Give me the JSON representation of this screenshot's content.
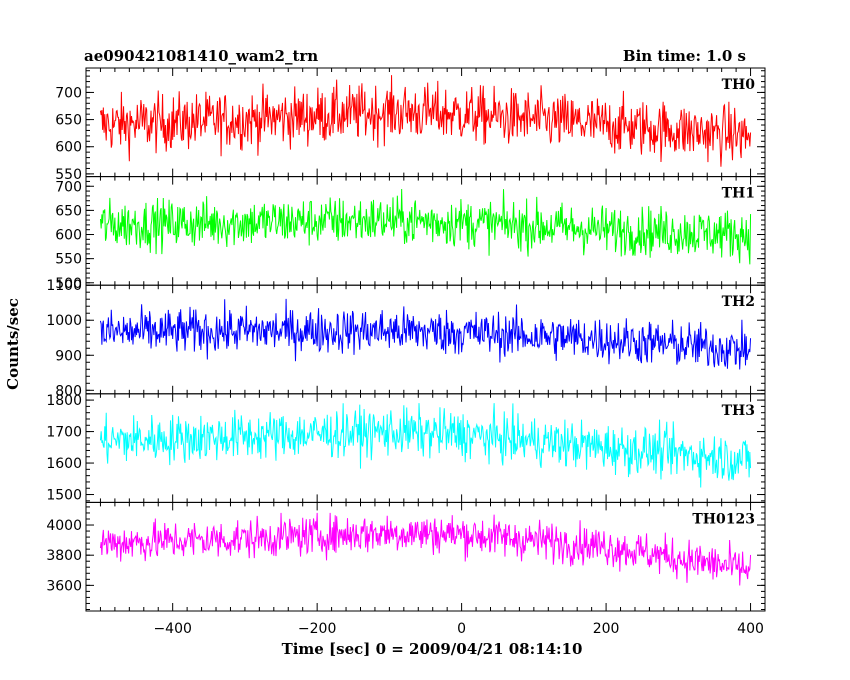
{
  "header": {
    "left_title": "ae090421081410_wam2_trn",
    "right_title": "Bin time: 1.0 s"
  },
  "chart_data": {
    "type": "line",
    "xlabel": "Time [sec] 0 = 2009/04/21 08:14:10",
    "ylabel": "Counts/sec",
    "xlim": [
      -520,
      420
    ],
    "x_ticks": [
      -400,
      -200,
      0,
      200,
      400
    ],
    "x_range": [
      -500,
      400
    ],
    "bin_time": 1.0,
    "panels": [
      {
        "name": "TH0",
        "color": "#ff0000",
        "ylim": [
          545,
          745
        ],
        "y_ticks": [
          550,
          600,
          650,
          700
        ],
        "trend": [
          [
            -500,
            640
          ],
          [
            -300,
            650
          ],
          [
            -100,
            665
          ],
          [
            0,
            660
          ],
          [
            200,
            640
          ],
          [
            400,
            620
          ]
        ],
        "noise": 26
      },
      {
        "name": "TH1",
        "color": "#00ff00",
        "ylim": [
          495,
          720
        ],
        "y_ticks": [
          500,
          550,
          600,
          650,
          700
        ],
        "trend": [
          [
            -500,
            620
          ],
          [
            -300,
            625
          ],
          [
            -100,
            630
          ],
          [
            0,
            625
          ],
          [
            200,
            610
          ],
          [
            400,
            600
          ]
        ],
        "noise": 25
      },
      {
        "name": "TH2",
        "color": "#0000ff",
        "ylim": [
          790,
          1100
        ],
        "y_ticks": [
          800,
          900,
          1000,
          1100
        ],
        "trend": [
          [
            -500,
            965
          ],
          [
            -300,
            970
          ],
          [
            -100,
            970
          ],
          [
            0,
            965
          ],
          [
            200,
            945
          ],
          [
            400,
            915
          ]
        ],
        "noise": 32
      },
      {
        "name": "TH3",
        "color": "#00ffff",
        "ylim": [
          1475,
          1820
        ],
        "y_ticks": [
          1500,
          1600,
          1700,
          1800
        ],
        "trend": [
          [
            -500,
            1670
          ],
          [
            -300,
            1685
          ],
          [
            -100,
            1700
          ],
          [
            0,
            1690
          ],
          [
            200,
            1650
          ],
          [
            400,
            1610
          ]
        ],
        "noise": 38
      },
      {
        "name": "TH0123",
        "color": "#ff00ff",
        "ylim": [
          3430,
          4150
        ],
        "y_ticks": [
          3600,
          3800,
          4000
        ],
        "trend": [
          [
            -500,
            3880
          ],
          [
            -300,
            3910
          ],
          [
            -100,
            3950
          ],
          [
            0,
            3940
          ],
          [
            200,
            3860
          ],
          [
            300,
            3780
          ],
          [
            400,
            3700
          ]
        ],
        "noise": 65
      }
    ]
  }
}
